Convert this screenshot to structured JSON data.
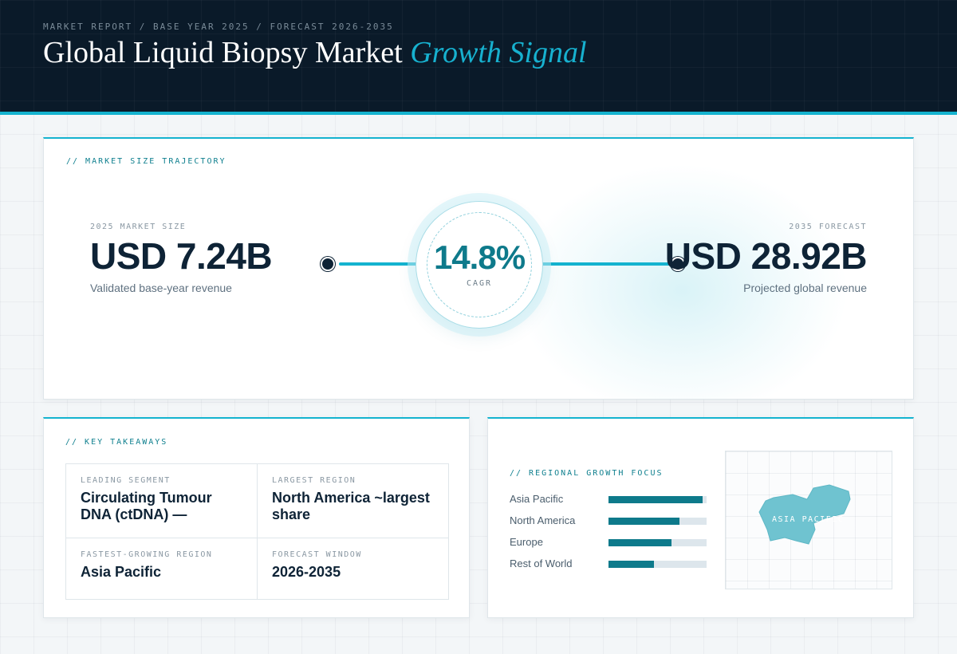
{
  "header": {
    "eyebrow": "MARKET REPORT / BASE YEAR 2025 / FORECAST 2026-2035",
    "title_main": "Global Liquid Biopsy Market",
    "title_accent": "Growth Signal"
  },
  "trajectory": {
    "section_label": "// MARKET SIZE TRAJECTORY",
    "start": {
      "label": "2025 MARKET SIZE",
      "value": "USD 7.24B",
      "sub": "Validated base-year revenue"
    },
    "end": {
      "label": "2035 FORECAST",
      "value": "USD 28.92B",
      "sub": "Projected global revenue"
    },
    "cagr": {
      "value": "14.8%",
      "label": "CAGR"
    }
  },
  "takeaways": {
    "section_label": "// KEY TAKEAWAYS",
    "items": [
      {
        "label": "LEADING SEGMENT",
        "value": "Circulating Tumour DNA (ctDNA) —"
      },
      {
        "label": "LARGEST REGION",
        "value": "North America ~largest share"
      },
      {
        "label": "FASTEST-GROWING REGION",
        "value": "Asia Pacific"
      },
      {
        "label": "FORECAST WINDOW",
        "value": "2026-2035"
      }
    ]
  },
  "regional": {
    "section_label": "// REGIONAL GROWTH FOCUS",
    "regions": [
      {
        "name": "Asia Pacific",
        "level": 0.96
      },
      {
        "name": "North America",
        "level": 0.72
      },
      {
        "name": "Europe",
        "level": 0.64
      },
      {
        "name": "Rest of World",
        "level": 0.46
      }
    ],
    "map_label": "ASIA PACIFIC"
  },
  "colors": {
    "accent": "#14b3cf",
    "teal": "#0e7a8b",
    "navy": "#0a1a29",
    "map_fill": "#6fc3d0"
  }
}
